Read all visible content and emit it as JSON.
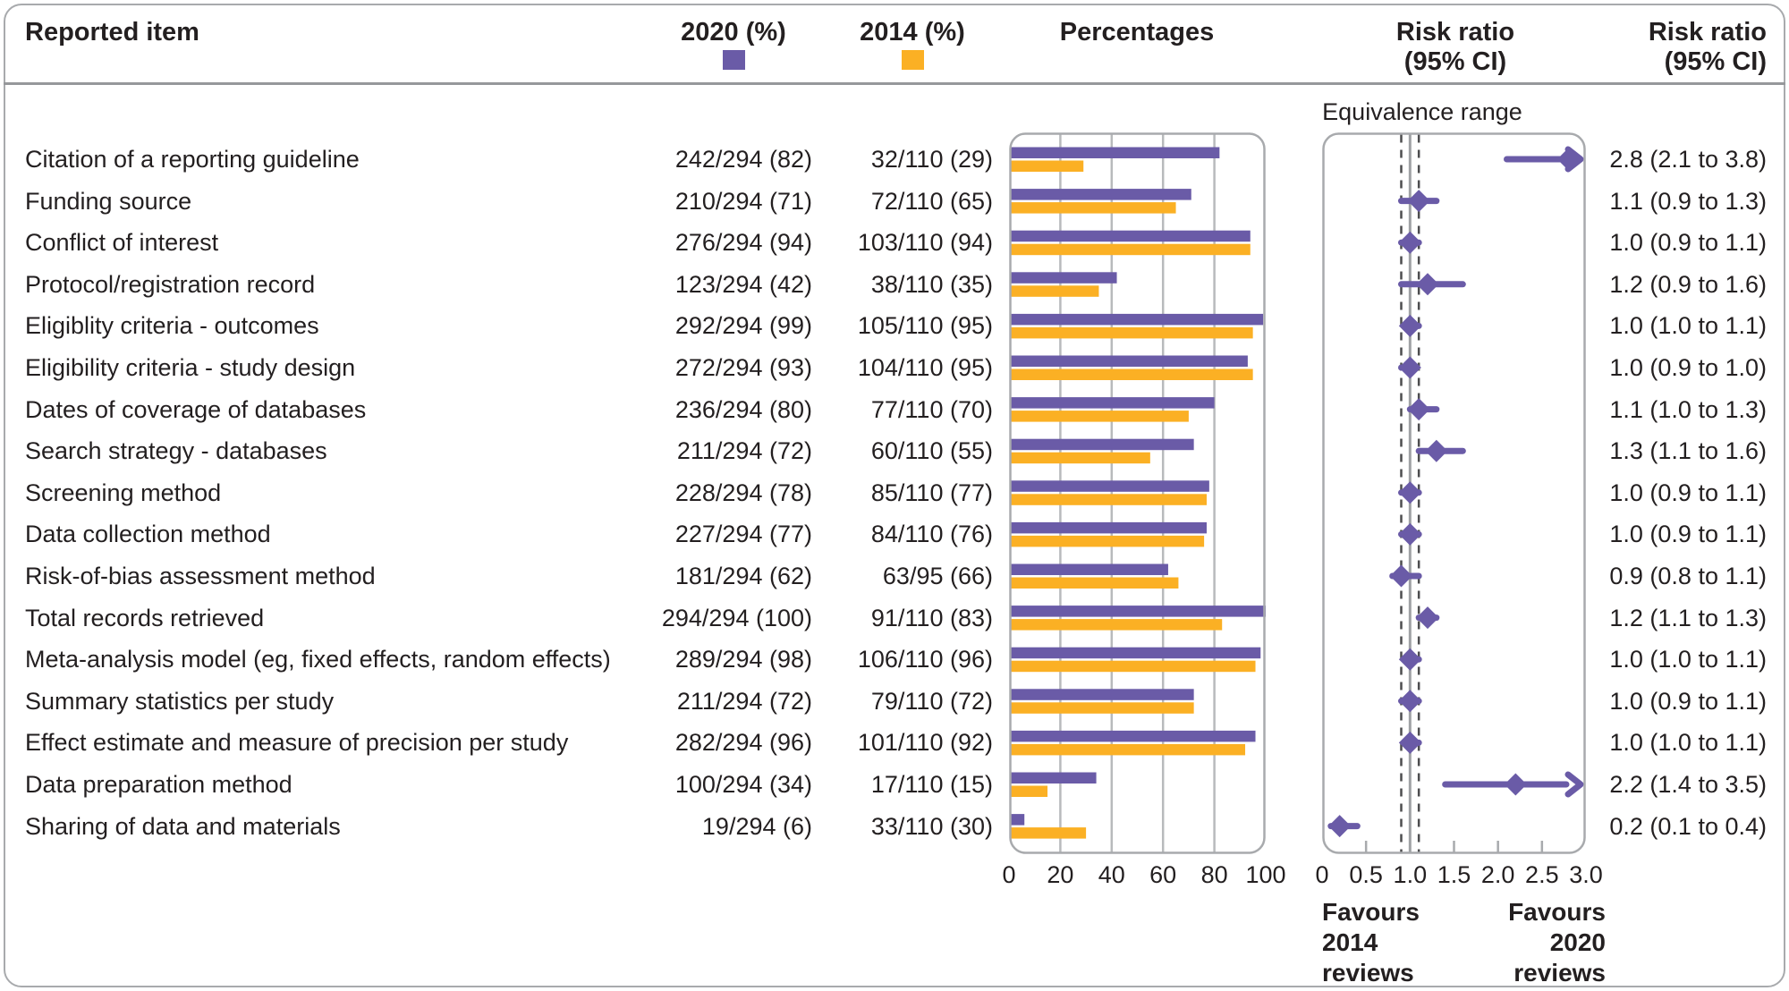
{
  "header": {
    "reported_item": "Reported item",
    "col_2020": "2020 (%)",
    "col_2014": "2014 (%)",
    "percentages": "Percentages",
    "risk_ratio_plot_line1": "Risk ratio",
    "risk_ratio_plot_line2": "(95% CI)",
    "risk_ratio_text_line1": "Risk ratio",
    "risk_ratio_text_line2": "(95% CI)"
  },
  "equivalence_label": "Equivalence range",
  "favours_left": {
    "lines": [
      "Favours",
      "2014",
      "reviews"
    ]
  },
  "favours_right": {
    "lines": [
      "Favours",
      "2020",
      "reviews"
    ]
  },
  "colors": {
    "purple_2020": "#6a5ba7",
    "orange_2014": "#fbb024",
    "panel_border": "#a8aaad",
    "grid_line": "#b8babc",
    "reference_line": "#a0a2a5",
    "equivalence_dash": "#4d4d4f",
    "text": "#231f20"
  },
  "chart_data": {
    "type": "bar",
    "description": "Paired horizontal bar chart of reporting percentages (2020 vs 2014) with an accompanying forest plot of risk ratios (95% CI)",
    "bar_xlim": [
      0,
      100
    ],
    "bar_ticks": [
      "0",
      "20",
      "40",
      "60",
      "80",
      "100"
    ],
    "bar_tick_values": [
      0,
      20,
      40,
      60,
      80,
      100
    ],
    "forest_xlim": [
      0,
      3.0
    ],
    "forest_ticks": [
      "0",
      "0.5",
      "1.0",
      "1.5",
      "2.0",
      "2.5",
      "3.0"
    ],
    "forest_tick_values": [
      0,
      0.5,
      1.0,
      1.5,
      2.0,
      2.5,
      3.0
    ],
    "forest_minor_tick_values": [
      0.5,
      1.5,
      2.0,
      2.5
    ],
    "reference_value": 1.0,
    "equivalence_range": [
      0.9,
      1.1
    ],
    "series": [
      {
        "name": "2020 (%)",
        "values": [
          82,
          71,
          94,
          42,
          99,
          93,
          80,
          72,
          78,
          77,
          62,
          100,
          98,
          72,
          96,
          34,
          6
        ]
      },
      {
        "name": "2014 (%)",
        "values": [
          29,
          65,
          94,
          35,
          95,
          95,
          70,
          55,
          77,
          76,
          66,
          83,
          96,
          72,
          92,
          15,
          30
        ]
      }
    ],
    "rows": [
      {
        "label": "Citation of a reporting guideline",
        "v2020": "242/294 (82)",
        "v2014": "32/110 (29)",
        "pct2020": 82,
        "pct2014": 29,
        "rr": 2.8,
        "lo": 2.1,
        "hi": 3.8,
        "rr_text": "2.8 (2.1 to 3.8)"
      },
      {
        "label": "Funding source",
        "v2020": "210/294 (71)",
        "v2014": "72/110 (65)",
        "pct2020": 71,
        "pct2014": 65,
        "rr": 1.1,
        "lo": 0.9,
        "hi": 1.3,
        "rr_text": "1.1 (0.9 to 1.3)"
      },
      {
        "label": "Conflict of interest",
        "v2020": "276/294 (94)",
        "v2014": "103/110 (94)",
        "pct2020": 94,
        "pct2014": 94,
        "rr": 1.0,
        "lo": 0.9,
        "hi": 1.1,
        "rr_text": "1.0 (0.9 to 1.1)"
      },
      {
        "label": "Protocol/registration record",
        "v2020": "123/294 (42)",
        "v2014": "38/110 (35)",
        "pct2020": 42,
        "pct2014": 35,
        "rr": 1.2,
        "lo": 0.9,
        "hi": 1.6,
        "rr_text": "1.2 (0.9 to 1.6)"
      },
      {
        "label": "Eligiblity criteria - outcomes",
        "v2020": "292/294 (99)",
        "v2014": "105/110 (95)",
        "pct2020": 99,
        "pct2014": 95,
        "rr": 1.0,
        "lo": 1.0,
        "hi": 1.1,
        "rr_text": "1.0 (1.0 to 1.1)"
      },
      {
        "label": "Eligibility criteria - study design",
        "v2020": "272/294 (93)",
        "v2014": "104/110 (95)",
        "pct2020": 93,
        "pct2014": 95,
        "rr": 1.0,
        "lo": 0.9,
        "hi": 1.0,
        "rr_text": "1.0 (0.9 to 1.0)"
      },
      {
        "label": "Dates of coverage of databases",
        "v2020": "236/294 (80)",
        "v2014": "77/110 (70)",
        "pct2020": 80,
        "pct2014": 70,
        "rr": 1.1,
        "lo": 1.0,
        "hi": 1.3,
        "rr_text": "1.1 (1.0 to 1.3)"
      },
      {
        "label": "Search strategy - databases",
        "v2020": "211/294 (72)",
        "v2014": "60/110 (55)",
        "pct2020": 72,
        "pct2014": 55,
        "rr": 1.3,
        "lo": 1.1,
        "hi": 1.6,
        "rr_text": "1.3 (1.1 to 1.6)"
      },
      {
        "label": "Screening method",
        "v2020": "228/294 (78)",
        "v2014": "85/110 (77)",
        "pct2020": 78,
        "pct2014": 77,
        "rr": 1.0,
        "lo": 0.9,
        "hi": 1.1,
        "rr_text": "1.0 (0.9 to 1.1)"
      },
      {
        "label": "Data collection method",
        "v2020": "227/294 (77)",
        "v2014": "84/110 (76)",
        "pct2020": 77,
        "pct2014": 76,
        "rr": 1.0,
        "lo": 0.9,
        "hi": 1.1,
        "rr_text": "1.0 (0.9 to 1.1)"
      },
      {
        "label": "Risk-of-bias assessment method",
        "v2020": "181/294 (62)",
        "v2014": "63/95 (66)",
        "pct2020": 62,
        "pct2014": 66,
        "rr": 0.9,
        "lo": 0.8,
        "hi": 1.1,
        "rr_text": "0.9 (0.8 to 1.1)"
      },
      {
        "label": "Total records retrieved",
        "v2020": "294/294 (100)",
        "v2014": "91/110 (83)",
        "pct2020": 100,
        "pct2014": 83,
        "rr": 1.2,
        "lo": 1.1,
        "hi": 1.3,
        "rr_text": "1.2 (1.1 to 1.3)"
      },
      {
        "label": "Meta-analysis model (eg, fixed effects, random effects)",
        "v2020": "289/294 (98)",
        "v2014": "106/110 (96)",
        "pct2020": 98,
        "pct2014": 96,
        "rr": 1.0,
        "lo": 1.0,
        "hi": 1.1,
        "rr_text": "1.0 (1.0 to 1.1)"
      },
      {
        "label": "Summary statistics per study",
        "v2020": "211/294 (72)",
        "v2014": "79/110 (72)",
        "pct2020": 72,
        "pct2014": 72,
        "rr": 1.0,
        "lo": 0.9,
        "hi": 1.1,
        "rr_text": "1.0 (0.9 to 1.1)"
      },
      {
        "label": "Effect estimate and measure of precision per study",
        "v2020": "282/294 (96)",
        "v2014": "101/110 (92)",
        "pct2020": 96,
        "pct2014": 92,
        "rr": 1.0,
        "lo": 1.0,
        "hi": 1.1,
        "rr_text": "1.0 (1.0 to 1.1)"
      },
      {
        "label": "Data preparation method",
        "v2020": "100/294 (34)",
        "v2014": "17/110 (15)",
        "pct2020": 34,
        "pct2014": 15,
        "rr": 2.2,
        "lo": 1.4,
        "hi": 3.5,
        "rr_text": "2.2 (1.4 to 3.5)"
      },
      {
        "label": "Sharing of data and materials",
        "v2020": "19/294 (6)",
        "v2014": "33/110 (30)",
        "pct2020": 6,
        "pct2014": 30,
        "rr": 0.2,
        "lo": 0.1,
        "hi": 0.4,
        "rr_text": "0.2 (0.1 to 0.4)"
      }
    ]
  }
}
